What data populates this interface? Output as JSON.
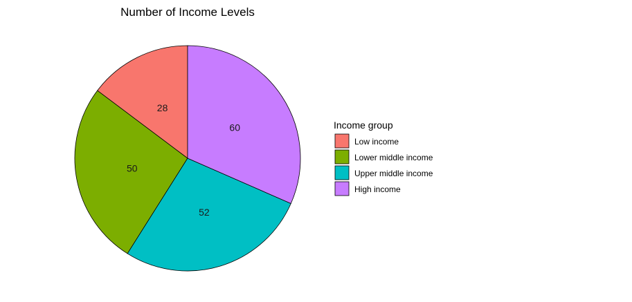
{
  "chart_data": {
    "type": "pie",
    "title": "Number of Income Levels",
    "legend": {
      "title": "Income group",
      "position": "right"
    },
    "slices": [
      {
        "label": "Low income",
        "value": 28,
        "color": "#F8766D"
      },
      {
        "label": "Lower middle income",
        "value": 50,
        "color": "#7CAE00"
      },
      {
        "label": "Upper middle income",
        "value": 52,
        "color": "#00BFC4"
      },
      {
        "label": "High income",
        "value": 60,
        "color": "#C77CFF"
      }
    ],
    "direction": "counterclockwise",
    "start_angle": "top"
  }
}
